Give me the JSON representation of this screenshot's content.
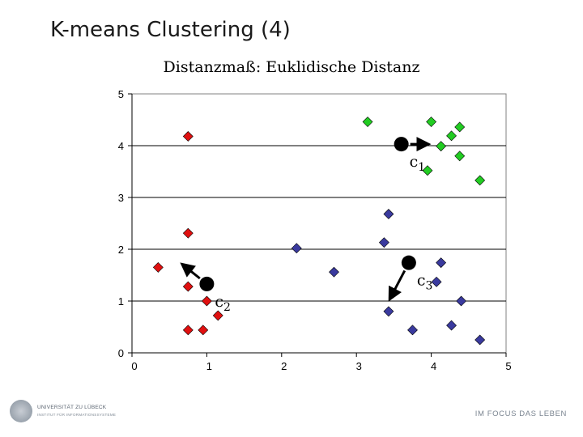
{
  "slide": {
    "title": "K-means Clustering (4)",
    "university_name": "UNIVERSITÄT ZU LÜBECK",
    "university_subline": "INSTITUT FÜR INFORMATIONSSYSTEME",
    "tagline": "IM FOCUS DAS LEBEN"
  },
  "chart_data": {
    "type": "scatter",
    "title": "Distanzmaß: Euklidische Distanz",
    "xlabel": "",
    "ylabel": "",
    "xlim": [
      0,
      5
    ],
    "ylim": [
      0,
      5
    ],
    "x_ticks": [
      "0",
      "1",
      "2",
      "3",
      "4",
      "5"
    ],
    "y_ticks": [
      "0",
      "1",
      "2",
      "3",
      "4",
      "5"
    ],
    "grid": "horizontal",
    "series": [
      {
        "color": "#e01010",
        "marker": "diamond",
        "points": [
          [
            0.75,
            4.18
          ],
          [
            0.75,
            2.31
          ],
          [
            0.35,
            1.65
          ],
          [
            0.75,
            1.28
          ],
          [
            1.0,
            1.0
          ],
          [
            1.15,
            0.72
          ],
          [
            0.75,
            0.44
          ],
          [
            0.95,
            0.44
          ]
        ]
      },
      {
        "color": "#22cc22",
        "marker": "diamond",
        "points": [
          [
            3.15,
            4.46
          ],
          [
            4.0,
            4.46
          ],
          [
            4.38,
            4.36
          ],
          [
            4.27,
            4.19
          ],
          [
            4.13,
            3.99
          ],
          [
            4.38,
            3.8
          ],
          [
            3.95,
            3.52
          ],
          [
            4.65,
            3.33
          ]
        ]
      },
      {
        "color": "#3a3a9e",
        "marker": "diamond",
        "points": [
          [
            3.43,
            2.68
          ],
          [
            3.37,
            2.13
          ],
          [
            2.2,
            2.02
          ],
          [
            2.7,
            1.56
          ],
          [
            4.13,
            1.74
          ],
          [
            4.07,
            1.37
          ],
          [
            3.43,
            0.8
          ],
          [
            4.4,
            1.0
          ],
          [
            4.27,
            0.53
          ],
          [
            3.75,
            0.44
          ],
          [
            4.65,
            0.25
          ]
        ]
      }
    ],
    "centroids": [
      {
        "label": "c",
        "sub": "1",
        "x": 3.6,
        "y": 4.03,
        "arrow_to": [
          3.95,
          4.03
        ]
      },
      {
        "label": "c",
        "sub": "2",
        "x": 1.0,
        "y": 1.33,
        "arrow_to": [
          0.68,
          1.7
        ]
      },
      {
        "label": "c",
        "sub": "3",
        "x": 3.7,
        "y": 1.74,
        "arrow_to": [
          3.45,
          1.05
        ]
      }
    ]
  }
}
